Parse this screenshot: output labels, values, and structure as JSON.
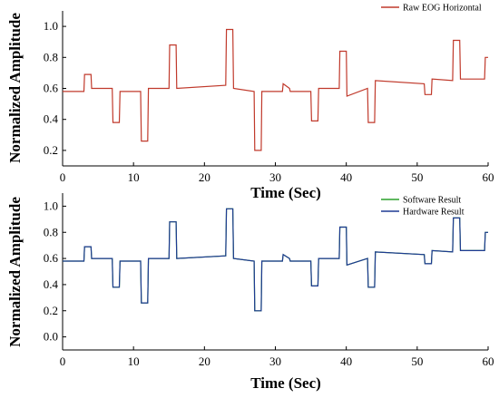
{
  "chart_data": [
    {
      "type": "line",
      "xlabel": "Time (Sec)",
      "ylabel": "Normalized Amplitude",
      "xlim": [
        0,
        60
      ],
      "ylim": [
        0.1,
        1.1
      ],
      "xticks": [
        "0",
        "10",
        "20",
        "30",
        "40",
        "50",
        "60"
      ],
      "yticks": [
        "0.2",
        "0.4",
        "0.6",
        "0.8",
        "1.0"
      ],
      "legend": "top-right",
      "series": [
        {
          "name": "Raw EOG Horizontal",
          "color": "#c0392b",
          "x": [
            0,
            3,
            3.1,
            4,
            4.1,
            7,
            7.1,
            8,
            8.1,
            11,
            11.1,
            12,
            12.1,
            15,
            15.1,
            16,
            16.1,
            23,
            23.1,
            24,
            24.1,
            27,
            27.1,
            28,
            28.1,
            31,
            31.1,
            32,
            32.1,
            35,
            35.1,
            36,
            36.1,
            39,
            39.1,
            40,
            40.1,
            43,
            43.1,
            44,
            44.1,
            51,
            51.1,
            52,
            52.1,
            55,
            55.1,
            56,
            56.1,
            59.5,
            59.6,
            60
          ],
          "y": [
            0.58,
            0.58,
            0.69,
            0.69,
            0.6,
            0.6,
            0.38,
            0.38,
            0.58,
            0.58,
            0.26,
            0.26,
            0.6,
            0.6,
            0.88,
            0.88,
            0.6,
            0.62,
            0.98,
            0.98,
            0.6,
            0.58,
            0.2,
            0.2,
            0.58,
            0.58,
            0.63,
            0.6,
            0.58,
            0.58,
            0.39,
            0.39,
            0.6,
            0.6,
            0.84,
            0.84,
            0.55,
            0.6,
            0.38,
            0.38,
            0.65,
            0.63,
            0.56,
            0.56,
            0.66,
            0.65,
            0.91,
            0.91,
            0.66,
            0.66,
            0.8,
            0.8
          ]
        }
      ]
    },
    {
      "type": "line",
      "xlabel": "Time (Sec)",
      "ylabel": "Normalized Amplitude",
      "xlim": [
        0,
        60
      ],
      "ylim": [
        -0.1,
        1.1
      ],
      "xticks": [
        "0",
        "10",
        "20",
        "30",
        "40",
        "50",
        "60"
      ],
      "yticks": [
        "0.0",
        "0.2",
        "0.4",
        "0.6",
        "0.8",
        "1.0"
      ],
      "legend": "top-right",
      "series": [
        {
          "name": "Software Result",
          "color": "#2ca02c",
          "x": [
            0,
            3,
            3.1,
            4,
            4.1,
            7,
            7.1,
            8,
            8.1,
            11,
            11.1,
            12,
            12.1,
            15,
            15.1,
            16,
            16.1,
            23,
            23.1,
            24,
            24.1,
            27,
            27.1,
            28,
            28.1,
            31,
            31.1,
            32,
            32.1,
            35,
            35.1,
            36,
            36.1,
            39,
            39.1,
            40,
            40.1,
            43,
            43.1,
            44,
            44.1,
            51,
            51.1,
            52,
            52.1,
            55,
            55.1,
            56,
            56.1,
            59.5,
            59.6,
            60
          ],
          "y": [
            0.58,
            0.58,
            0.69,
            0.69,
            0.6,
            0.6,
            0.38,
            0.38,
            0.58,
            0.58,
            0.26,
            0.26,
            0.6,
            0.6,
            0.88,
            0.88,
            0.6,
            0.62,
            0.98,
            0.98,
            0.6,
            0.58,
            0.2,
            0.2,
            0.58,
            0.58,
            0.63,
            0.6,
            0.58,
            0.58,
            0.39,
            0.39,
            0.6,
            0.6,
            0.84,
            0.84,
            0.55,
            0.6,
            0.38,
            0.38,
            0.65,
            0.63,
            0.56,
            0.56,
            0.66,
            0.65,
            0.91,
            0.91,
            0.66,
            0.66,
            0.8,
            0.8
          ]
        },
        {
          "name": "Hardware Result",
          "color": "#1f3a93",
          "x": [
            0,
            3,
            3.1,
            4,
            4.1,
            7,
            7.1,
            8,
            8.1,
            11,
            11.1,
            12,
            12.1,
            15,
            15.1,
            16,
            16.1,
            23,
            23.1,
            24,
            24.1,
            27,
            27.1,
            28,
            28.1,
            31,
            31.1,
            32,
            32.1,
            35,
            35.1,
            36,
            36.1,
            39,
            39.1,
            40,
            40.1,
            43,
            43.1,
            44,
            44.1,
            51,
            51.1,
            52,
            52.1,
            55,
            55.1,
            56,
            56.1,
            59.5,
            59.6,
            60
          ],
          "y": [
            0.58,
            0.58,
            0.69,
            0.69,
            0.6,
            0.6,
            0.38,
            0.38,
            0.58,
            0.58,
            0.26,
            0.26,
            0.6,
            0.6,
            0.88,
            0.88,
            0.6,
            0.62,
            0.98,
            0.98,
            0.6,
            0.58,
            0.2,
            0.2,
            0.58,
            0.58,
            0.63,
            0.6,
            0.58,
            0.58,
            0.39,
            0.39,
            0.6,
            0.6,
            0.84,
            0.84,
            0.55,
            0.6,
            0.38,
            0.38,
            0.65,
            0.63,
            0.56,
            0.56,
            0.66,
            0.65,
            0.91,
            0.91,
            0.66,
            0.66,
            0.8,
            0.8
          ]
        }
      ]
    }
  ]
}
